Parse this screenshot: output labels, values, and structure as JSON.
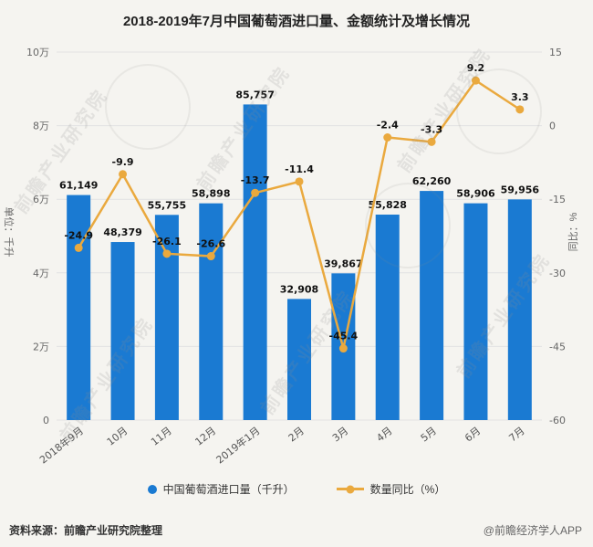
{
  "title": "2018-2019年7月中国葡萄酒进口量、金额统计及增长情况",
  "chart_data": {
    "type": "bar+line",
    "categories": [
      "2018年9月",
      "10月",
      "11月",
      "12月",
      "2019年1月",
      "2月",
      "3月",
      "4月",
      "5月",
      "6月",
      "7月"
    ],
    "series": [
      {
        "name": "中国葡萄酒进口量（千升）",
        "type": "bar",
        "axis": "left",
        "color": "#1A7AD2",
        "values": [
          61149,
          48379,
          55755,
          58898,
          85757,
          32908,
          39867,
          55828,
          62260,
          58906,
          59956
        ],
        "labels": [
          "61,149",
          "48,379",
          "55,755",
          "58,898",
          "85,757",
          "32,908",
          "39,867",
          "55,828",
          "62,260",
          "58,906",
          "59,956"
        ]
      },
      {
        "name": "数量同比（%）",
        "type": "line",
        "axis": "right",
        "color": "#EAA93E",
        "values": [
          -24.9,
          -9.9,
          -26.1,
          -26.6,
          -13.7,
          -11.4,
          -45.4,
          -2.4,
          -3.3,
          9.2,
          3.3
        ],
        "labels": [
          "-24.9",
          "-9.9",
          "-26.1",
          "-26.6",
          "-13.7",
          "-11.4",
          "-45.4",
          "-2.4",
          "-3.3",
          "9.2",
          "3.3"
        ]
      }
    ],
    "left_axis": {
      "label": "单位：千升",
      "ticks": [
        "10万",
        "8万",
        "6万",
        "4万",
        "2万",
        "0"
      ],
      "min": 0,
      "max": 100000
    },
    "right_axis": {
      "label": "同比：%",
      "ticks": [
        "15",
        "0",
        "-15",
        "-30",
        "-45",
        "-60"
      ],
      "min": -60,
      "max": 15
    },
    "grid": true,
    "legend_position": "bottom"
  },
  "legend": [
    {
      "label": "中国葡萄酒进口量（千升）",
      "marker": "circle",
      "color": "#1A7AD2"
    },
    {
      "label": "数量同比（%）",
      "marker": "line-dot",
      "color": "#EAA93E"
    }
  ],
  "footer": {
    "source": "资料来源：前瞻产业研究院整理",
    "credit": "@前瞻经济学人APP"
  },
  "watermark": {
    "text": "前瞻产业研究院"
  },
  "colors": {
    "bar": "#1A7AD2",
    "line": "#EAA93E",
    "grid": "#e2e2e2"
  }
}
